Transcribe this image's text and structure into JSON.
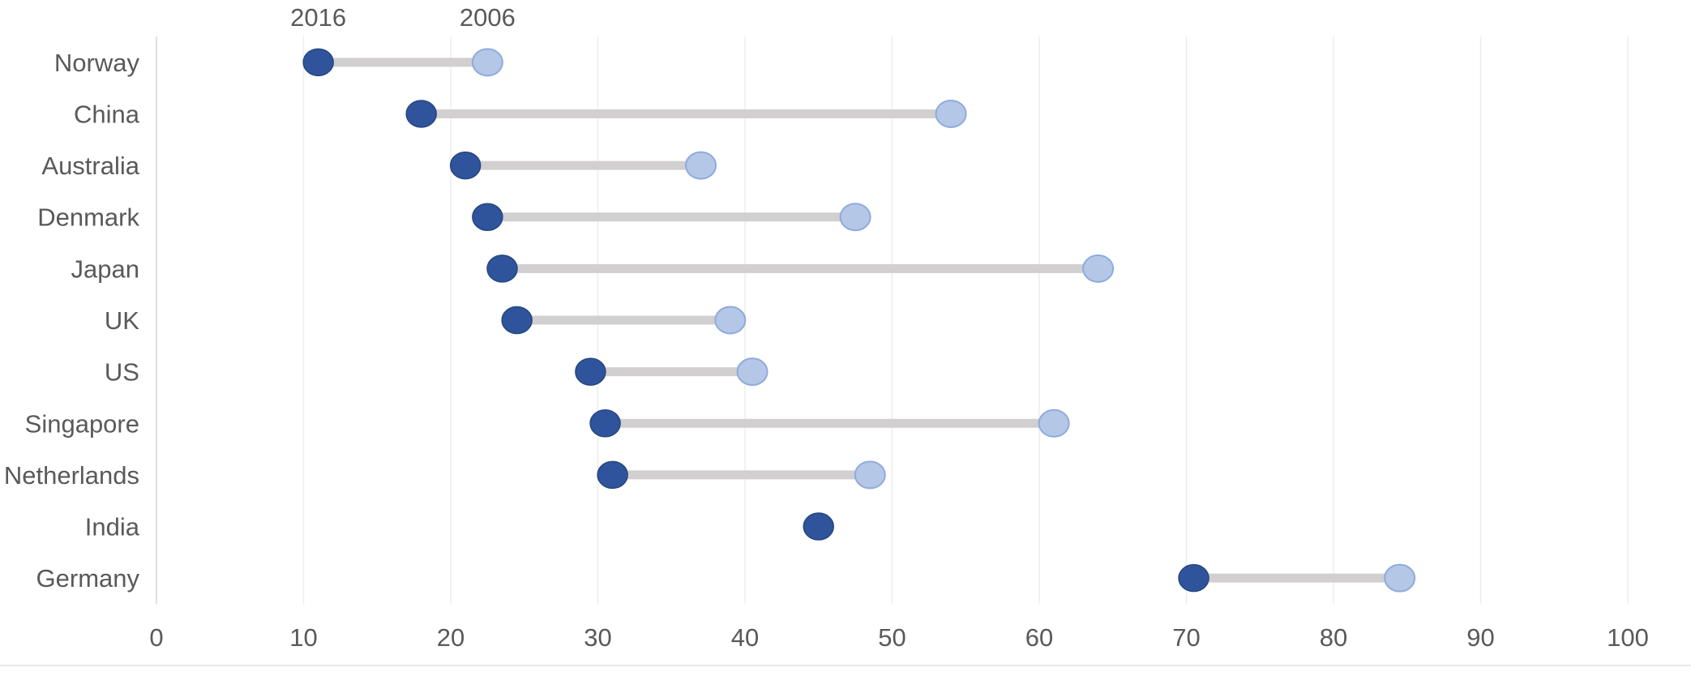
{
  "chart_data": {
    "type": "scatter",
    "variant": "dumbbell",
    "title": "",
    "xlabel": "",
    "ylabel": "",
    "categories": [
      "Norway",
      "China",
      "Australia",
      "Denmark",
      "Japan",
      "UK",
      "US",
      "Singapore",
      "Netherlands",
      "India",
      "Germany"
    ],
    "series": [
      {
        "name": "2016",
        "values": [
          11,
          18,
          21,
          22.5,
          23.5,
          24.5,
          29.5,
          30.5,
          31,
          45,
          70.5
        ]
      },
      {
        "name": "2006",
        "values": [
          22.5,
          54,
          37,
          47.5,
          64,
          39,
          40.5,
          61,
          48.5,
          null,
          84.5
        ]
      }
    ],
    "xlim": [
      0,
      100
    ],
    "x_ticks": [
      0,
      10,
      20,
      30,
      40,
      50,
      60,
      70,
      80,
      90,
      100
    ],
    "x_tick_labels": [
      "0",
      "10",
      "20",
      "30",
      "40",
      "50",
      "60",
      "70",
      "80",
      "90",
      "100"
    ],
    "grid": "vertical-on",
    "legend_position": "above-first-row-points",
    "legend_labels": [
      "2016",
      "2006"
    ]
  },
  "colors": {
    "series_2016_fill": "#30549B",
    "series_2016_stroke": "#24477F",
    "series_2006_fill": "#B4C7E7",
    "series_2006_stroke": "#8FAADC",
    "connector": "#D1CFCF",
    "gridline": "#ECECEC",
    "axis_line": "#D6D6D6",
    "text": "#595959",
    "bottom_divider": "#E9E9E9",
    "background": "#FFFFFF"
  }
}
